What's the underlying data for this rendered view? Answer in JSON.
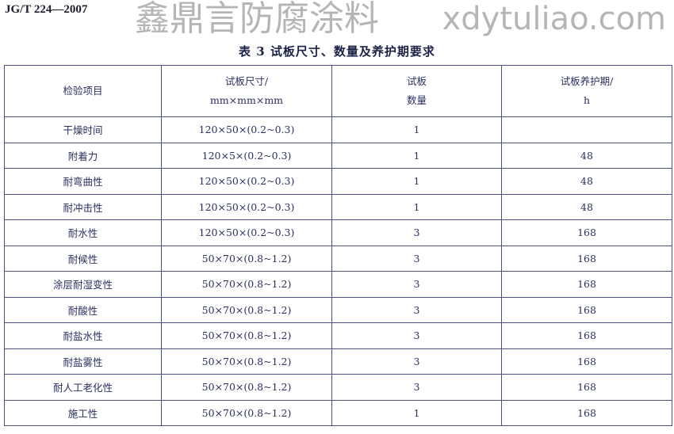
{
  "standard_code": "JG/T 224—2007",
  "caption": "表 3  试板尺寸、数量及养护期要求",
  "table": {
    "headers": [
      {
        "line1": "检验项目",
        "line2": ""
      },
      {
        "line1": "试板尺寸/",
        "line2": "mm×mm×mm"
      },
      {
        "line1": "试板",
        "line2": "数量"
      },
      {
        "line1": "试板养护期/",
        "line2": "h"
      }
    ],
    "rows": [
      [
        "干燥时间",
        "120×50×(0.2~0.3)",
        "1",
        ""
      ],
      [
        "附着力",
        "120×5×(0.2~0.3)",
        "1",
        "48"
      ],
      [
        "耐弯曲性",
        "120×50×(0.2~0.3)",
        "1",
        "48"
      ],
      [
        "耐冲击性",
        "120×50×(0.2~0.3)",
        "1",
        "48"
      ],
      [
        "耐水性",
        "120×50×(0.2~0.3)",
        "3",
        "168"
      ],
      [
        "耐候性",
        "50×70×(0.8~1.2)",
        "3",
        "168"
      ],
      [
        "涂层耐湿变性",
        "50×70×(0.8~1.2)",
        "3",
        "168"
      ],
      [
        "耐酸性",
        "50×70×(0.8~1.2)",
        "3",
        "168"
      ],
      [
        "耐盐水性",
        "50×70×(0.8~1.2)",
        "3",
        "168"
      ],
      [
        "耐盐雾性",
        "50×70×(0.8~1.2)",
        "3",
        "168"
      ],
      [
        "耐人工老化性",
        "50×70×(0.8~1.2)",
        "3",
        "168"
      ],
      [
        "施工性",
        "50×70×(0.8~1.2)",
        "1",
        "168"
      ]
    ]
  },
  "watermark": {
    "line1": "鑫鼎言防腐涂料",
    "line2": "xdytuliao.com"
  }
}
